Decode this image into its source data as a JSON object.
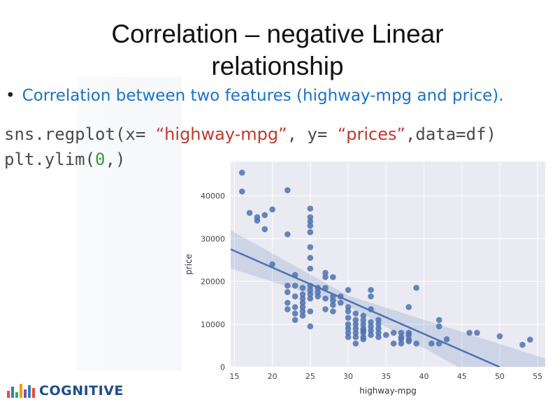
{
  "slide": {
    "title_line1": "Correlation – negative Linear",
    "title_line2": "relationship",
    "bullet": "Correlation between two features (highway-mpg and price).",
    "code_line1": {
      "prefix": "sns.regplot(x= ",
      "x_arg": "“highway-mpg”",
      "mid": ",  y= ",
      "y_arg": "“prices”",
      "suffix": ",data=df)"
    },
    "code_line2": {
      "prefix": "plt.ylim(",
      "zero": "0",
      "suffix": ",)"
    },
    "logo_text": "COGNITIVE",
    "logo_colors": [
      "#e74c3c",
      "#2c7fb8",
      "#27ae60",
      "#f39c12",
      "#8e44ad",
      "#2c7fb8"
    ]
  },
  "chart_data": {
    "type": "scatter",
    "xlabel": "highway-mpg",
    "ylabel": "price",
    "xlim": [
      14.5,
      56
    ],
    "ylim": [
      0,
      48000
    ],
    "xticks": [
      15,
      20,
      25,
      30,
      35,
      40,
      45,
      50,
      55
    ],
    "yticks": [
      0,
      10000,
      20000,
      30000,
      40000
    ],
    "grid": true,
    "background": "#eaeaf2",
    "point_color": "#4c72b0",
    "regression_line": {
      "x": [
        14.5,
        50
      ],
      "y": [
        27500,
        0
      ]
    },
    "points": [
      [
        16,
        45400
      ],
      [
        16,
        41000
      ],
      [
        17,
        36000
      ],
      [
        18,
        35000
      ],
      [
        18,
        34200
      ],
      [
        19,
        35500
      ],
      [
        19,
        32200
      ],
      [
        20,
        36800
      ],
      [
        20,
        24000
      ],
      [
        22,
        41300
      ],
      [
        22,
        31000
      ],
      [
        22,
        19000
      ],
      [
        22,
        17500
      ],
      [
        22,
        15000
      ],
      [
        22,
        13500
      ],
      [
        23,
        21500
      ],
      [
        23,
        19000
      ],
      [
        23,
        16500
      ],
      [
        23,
        14000
      ],
      [
        23,
        12500
      ],
      [
        23,
        11000
      ],
      [
        24,
        18500
      ],
      [
        24,
        17000
      ],
      [
        24,
        16000
      ],
      [
        24,
        15000
      ],
      [
        24,
        14000
      ],
      [
        24,
        13000
      ],
      [
        24,
        12000
      ],
      [
        25,
        37000
      ],
      [
        25,
        35000
      ],
      [
        25,
        34000
      ],
      [
        25,
        33000
      ],
      [
        25,
        31500
      ],
      [
        25,
        28000
      ],
      [
        25,
        25500
      ],
      [
        25,
        23000
      ],
      [
        25,
        19000
      ],
      [
        25,
        18000
      ],
      [
        25,
        17000
      ],
      [
        25,
        16000
      ],
      [
        25,
        13000
      ],
      [
        25,
        9500
      ],
      [
        26,
        18500
      ],
      [
        26,
        17500
      ],
      [
        26,
        16500
      ],
      [
        27,
        22000
      ],
      [
        27,
        21000
      ],
      [
        27,
        18500
      ],
      [
        27,
        16000
      ],
      [
        27,
        13500
      ],
      [
        28,
        21000
      ],
      [
        28,
        16500
      ],
      [
        28,
        15500
      ],
      [
        28,
        14500
      ],
      [
        28,
        13000
      ],
      [
        29,
        16500
      ],
      [
        29,
        15000
      ],
      [
        30,
        18000
      ],
      [
        30,
        14000
      ],
      [
        30,
        13000
      ],
      [
        30,
        11500
      ],
      [
        30,
        10000
      ],
      [
        30,
        9000
      ],
      [
        30,
        8000
      ],
      [
        30,
        7000
      ],
      [
        31,
        12500
      ],
      [
        31,
        11000
      ],
      [
        31,
        10000
      ],
      [
        31,
        9000
      ],
      [
        31,
        8000
      ],
      [
        31,
        7000
      ],
      [
        31,
        5500
      ],
      [
        32,
        12000
      ],
      [
        32,
        11000
      ],
      [
        32,
        10000
      ],
      [
        32,
        9000
      ],
      [
        32,
        8500
      ],
      [
        32,
        8000
      ],
      [
        32,
        7000
      ],
      [
        32,
        6500
      ],
      [
        33,
        18000
      ],
      [
        33,
        16500
      ],
      [
        33,
        13500
      ],
      [
        33,
        10500
      ],
      [
        33,
        9500
      ],
      [
        33,
        8500
      ],
      [
        33,
        7500
      ],
      [
        34,
        11000
      ],
      [
        34,
        10000
      ],
      [
        34,
        9000
      ],
      [
        34,
        8000
      ],
      [
        34,
        7000
      ],
      [
        35,
        7500
      ],
      [
        36,
        8000
      ],
      [
        36,
        5500
      ],
      [
        37,
        8000
      ],
      [
        37,
        7000
      ],
      [
        37,
        6500
      ],
      [
        37,
        5500
      ],
      [
        38,
        14000
      ],
      [
        38,
        8000
      ],
      [
        38,
        7500
      ],
      [
        38,
        6500
      ],
      [
        38,
        6000
      ],
      [
        39,
        18500
      ],
      [
        39,
        5500
      ],
      [
        41,
        5500
      ],
      [
        42,
        11000
      ],
      [
        42,
        9500
      ],
      [
        42,
        5500
      ],
      [
        43,
        6500
      ],
      [
        46,
        8000
      ],
      [
        47,
        8000
      ],
      [
        50,
        7200
      ],
      [
        53,
        5200
      ],
      [
        54,
        6400
      ]
    ]
  }
}
